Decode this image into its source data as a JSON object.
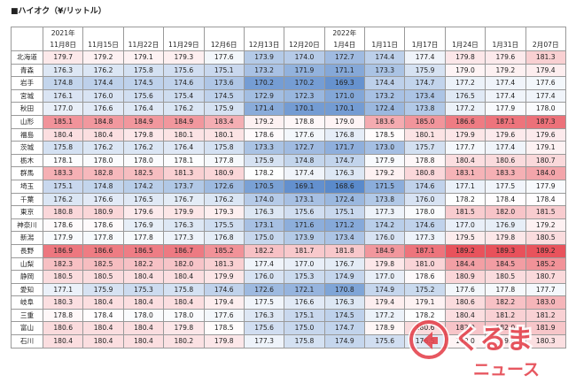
{
  "title": "■ハイオク（¥/リットル）",
  "columns": [
    {
      "year": "2021年",
      "date": "11月8日"
    },
    {
      "year": "",
      "date": "11月15日"
    },
    {
      "year": "",
      "date": "11月22日"
    },
    {
      "year": "",
      "date": "11月29日"
    },
    {
      "year": "",
      "date": "12月6日"
    },
    {
      "year": "",
      "date": "12月13日"
    },
    {
      "year": "",
      "date": "12月20日"
    },
    {
      "year": "2022年",
      "date": "1月4日"
    },
    {
      "year": "",
      "date": "1月11日"
    },
    {
      "year": "",
      "date": "1月17日"
    },
    {
      "year": "",
      "date": "1月24日"
    },
    {
      "year": "",
      "date": "1月31日"
    },
    {
      "year": "",
      "date": "2月07日"
    }
  ],
  "rows": [
    {
      "pref": "北海道",
      "values": [
        "179.7",
        "179.2",
        "179.1",
        "179.3",
        "177.6",
        "173.9",
        "174.0",
        "172.7",
        "174.4",
        "177.4",
        "179.8",
        "179.6",
        "181.3"
      ]
    },
    {
      "pref": "青森",
      "values": [
        "176.3",
        "176.2",
        "175.8",
        "175.6",
        "175.1",
        "173.2",
        "171.9",
        "171.1",
        "173.3",
        "175.9",
        "179.0",
        "179.2",
        "179.4"
      ]
    },
    {
      "pref": "岩手",
      "values": [
        "174.8",
        "174.4",
        "174.5",
        "174.6",
        "173.6",
        "170.2",
        "170.2",
        "169.3",
        "174.4",
        "174.7",
        "177.2",
        "177.4",
        "177.6"
      ]
    },
    {
      "pref": "宮城",
      "values": [
        "176.1",
        "176.0",
        "175.6",
        "175.4",
        "174.5",
        "172.9",
        "172.3",
        "171.0",
        "173.2",
        "173.4",
        "176.5",
        "177.4",
        "177.4"
      ]
    },
    {
      "pref": "秋田",
      "values": [
        "177.0",
        "176.6",
        "176.4",
        "176.2",
        "175.9",
        "171.4",
        "170.1",
        "170.1",
        "172.4",
        "173.8",
        "177.2",
        "177.9",
        "178.0"
      ]
    },
    {
      "pref": "山形",
      "values": [
        "185.1",
        "184.8",
        "184.9",
        "184.9",
        "183.4",
        "179.2",
        "178.8",
        "179.0",
        "183.6",
        "185.0",
        "186.6",
        "187.1",
        "187.3"
      ]
    },
    {
      "pref": "福島",
      "values": [
        "180.4",
        "180.4",
        "179.8",
        "180.1",
        "180.1",
        "178.6",
        "177.6",
        "176.8",
        "178.5",
        "180.1",
        "179.9",
        "179.6",
        "179.6"
      ]
    },
    {
      "pref": "茨城",
      "values": [
        "175.8",
        "176.2",
        "176.2",
        "176.4",
        "175.8",
        "173.3",
        "172.7",
        "171.7",
        "173.0",
        "175.7",
        "177.7",
        "177.4",
        "179.1"
      ]
    },
    {
      "pref": "栃木",
      "values": [
        "178.1",
        "178.0",
        "178.0",
        "178.1",
        "177.8",
        "175.9",
        "174.8",
        "174.7",
        "177.9",
        "178.8",
        "180.4",
        "180.6",
        "180.7"
      ]
    },
    {
      "pref": "群馬",
      "values": [
        "183.3",
        "182.8",
        "182.5",
        "181.3",
        "180.9",
        "178.2",
        "177.4",
        "176.3",
        "179.2",
        "180.8",
        "183.1",
        "183.3",
        "184.0"
      ]
    },
    {
      "pref": "埼玉",
      "values": [
        "175.1",
        "174.8",
        "174.2",
        "173.7",
        "172.6",
        "170.5",
        "169.1",
        "168.6",
        "171.5",
        "174.6",
        "177.1",
        "177.5",
        "177.9"
      ]
    },
    {
      "pref": "千葉",
      "values": [
        "176.2",
        "176.6",
        "176.5",
        "176.7",
        "176.2",
        "174.0",
        "173.1",
        "172.4",
        "173.8",
        "176.0",
        "178.2",
        "178.4",
        "178.4"
      ]
    },
    {
      "pref": "東京",
      "values": [
        "180.8",
        "180.9",
        "179.6",
        "179.9",
        "179.3",
        "176.3",
        "175.6",
        "175.1",
        "177.3",
        "178.0",
        "181.5",
        "182.0",
        "181.5"
      ]
    },
    {
      "pref": "神奈川",
      "values": [
        "178.6",
        "178.6",
        "176.9",
        "176.3",
        "175.5",
        "173.1",
        "171.6",
        "171.2",
        "174.2",
        "174.6",
        "177.0",
        "176.9",
        "179.2"
      ]
    },
    {
      "pref": "新潟",
      "values": [
        "177.9",
        "177.8",
        "177.8",
        "177.3",
        "176.8",
        "175.0",
        "173.9",
        "173.4",
        "176.0",
        "177.3",
        "179.5",
        "179.8",
        "180.5"
      ]
    },
    {
      "pref": "長野",
      "values": [
        "186.9",
        "186.6",
        "186.5",
        "186.7",
        "185.2",
        "182.2",
        "181.7",
        "181.8",
        "184.9",
        "187.1",
        "189.2",
        "189.3",
        "189.2"
      ]
    },
    {
      "pref": "山梨",
      "values": [
        "182.3",
        "182.5",
        "182.2",
        "182.0",
        "181.3",
        "177.4",
        "177.0",
        "176.7",
        "179.8",
        "181.0",
        "184.4",
        "184.5",
        "185.2"
      ]
    },
    {
      "pref": "静岡",
      "values": [
        "180.5",
        "180.5",
        "180.4",
        "180.4",
        "179.9",
        "176.0",
        "175.3",
        "174.9",
        "177.0",
        "178.6",
        "180.9",
        "180.5",
        "180.7"
      ]
    },
    {
      "pref": "愛知",
      "values": [
        "177.1",
        "175.9",
        "175.3",
        "175.8",
        "174.6",
        "172.6",
        "172.1",
        "170.8",
        "174.9",
        "175.2",
        "177.6",
        "177.8",
        "177.7"
      ]
    },
    {
      "pref": "岐阜",
      "values": [
        "180.3",
        "180.4",
        "180.4",
        "180.4",
        "179.4",
        "177.5",
        "176.6",
        "176.3",
        "179.4",
        "179.1",
        "180.6",
        "182.2",
        "183.0"
      ]
    },
    {
      "pref": "三重",
      "values": [
        "178.8",
        "178.4",
        "178.0",
        "178.0",
        "177.6",
        "176.3",
        "175.1",
        "174.5",
        "177.2",
        "178.2",
        "180.4",
        "181.2",
        "181.2"
      ]
    },
    {
      "pref": "富山",
      "values": [
        "180.6",
        "180.4",
        "180.4",
        "179.8",
        "178.5",
        "175.6",
        "175.0",
        "174.7",
        "178.9",
        "180.6",
        "182.0",
        "182.0",
        "181.9"
      ]
    },
    {
      "pref": "石川",
      "values": [
        "180.4",
        "180.4",
        "180.4",
        "180.2",
        "179.8",
        "177.3",
        "175.8",
        "174.9",
        "175.6",
        "176.5",
        "179.0",
        "179.6",
        "180.3"
      ]
    }
  ],
  "color_scale": {
    "low": "#5a8acb",
    "mid": "#ffffff",
    "high": "#e8515b",
    "min": 168.6,
    "mid_value": 178.3,
    "max": 189.3
  },
  "logo": {
    "text_main": "くるま",
    "text_sub": "ニュース",
    "color": "#e5454f",
    "icon": "car-arrow-logo"
  }
}
